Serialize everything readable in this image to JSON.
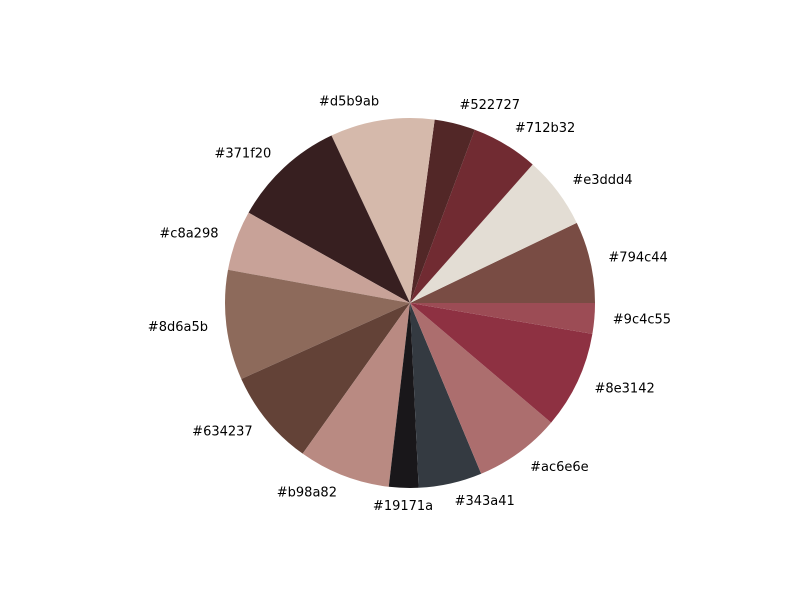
{
  "chart_data": {
    "type": "pie",
    "start_angle_deg": 0,
    "direction": "counterclockwise",
    "slices": [
      {
        "label": "#794c44",
        "value": 7.2,
        "color": "#794c44"
      },
      {
        "label": "#e3ddd4",
        "value": 6.4,
        "color": "#e3ddd4"
      },
      {
        "label": "#712b32",
        "value": 5.9,
        "color": "#712b32"
      },
      {
        "label": "#522727",
        "value": 3.6,
        "color": "#522727"
      },
      {
        "label": "#d5b9ab",
        "value": 9.2,
        "color": "#d5b9ab"
      },
      {
        "label": "#371f20",
        "value": 10.0,
        "color": "#371f20"
      },
      {
        "label": "#c8a298",
        "value": 5.3,
        "color": "#c8a298"
      },
      {
        "label": "#8d6a5b",
        "value": 9.7,
        "color": "#8d6a5b"
      },
      {
        "label": "#634237",
        "value": 8.5,
        "color": "#634237"
      },
      {
        "label": "#b98a82",
        "value": 8.1,
        "color": "#b98a82"
      },
      {
        "label": "#19171a",
        "value": 2.6,
        "color": "#19171a"
      },
      {
        "label": "#343a41",
        "value": 5.6,
        "color": "#343a41"
      },
      {
        "label": "#ac6e6e",
        "value": 7.6,
        "color": "#ac6e6e"
      },
      {
        "label": "#8e3142",
        "value": 8.6,
        "color": "#8e3142"
      },
      {
        "label": "#9c4c55",
        "value": 2.7,
        "color": "#9c4c55"
      }
    ]
  }
}
